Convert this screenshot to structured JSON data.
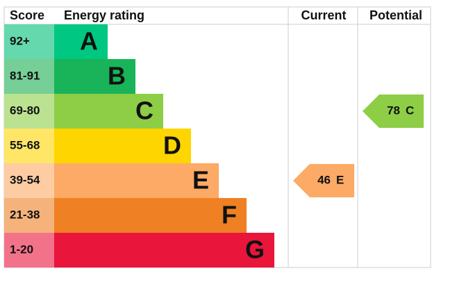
{
  "header": {
    "score": "Score",
    "rating": "Energy rating",
    "current": "Current",
    "potential": "Potential"
  },
  "bands": [
    {
      "score": "92+",
      "letter": "A",
      "color": "#00c781",
      "score_color": "#66d8ae"
    },
    {
      "score": "81-91",
      "letter": "B",
      "color": "#19b459",
      "score_color": "#75cf96"
    },
    {
      "score": "69-80",
      "letter": "C",
      "color": "#8dce46",
      "score_color": "#bbe290"
    },
    {
      "score": "55-68",
      "letter": "D",
      "color": "#ffd500",
      "score_color": "#ffe666"
    },
    {
      "score": "39-54",
      "letter": "E",
      "color": "#fcaa65",
      "score_color": "#fdcca3"
    },
    {
      "score": "21-38",
      "letter": "F",
      "color": "#ef8023",
      "score_color": "#f5b37b"
    },
    {
      "score": "1-20",
      "letter": "G",
      "color": "#e9153b",
      "score_color": "#f27389"
    }
  ],
  "current": {
    "value": 46,
    "letter": "E"
  },
  "potential": {
    "value": 78,
    "letter": "C"
  }
}
